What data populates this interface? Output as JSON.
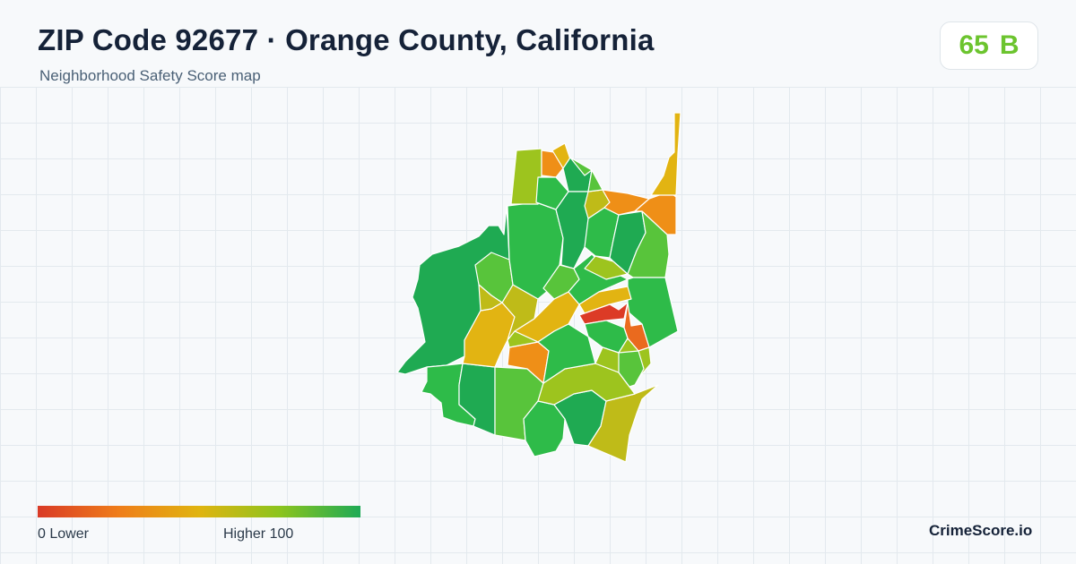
{
  "header": {
    "title": "ZIP Code 92677 · Orange County, California",
    "subtitle": "Neighborhood Safety Score map"
  },
  "score": {
    "value": "65",
    "grade": "B",
    "color": "#6cc42e"
  },
  "legend": {
    "min_label": "0  Lower",
    "max_label": "Higher  100",
    "colors": [
      "#d93a26",
      "#ef7d1a",
      "#e0b410",
      "#8cc41e",
      "#1eaa55"
    ]
  },
  "footer": {
    "brand": "CrimeScore.io"
  },
  "map": {
    "palette": {
      "red": "#dc3b26",
      "orange_red": "#ea6a1e",
      "orange": "#ef8f17",
      "amber": "#e2b412",
      "olive": "#bfbb18",
      "yellow_green": "#9dc41e",
      "light_green": "#58c43b",
      "green": "#2ebb49",
      "dark_green": "#1faa52"
    }
  }
}
